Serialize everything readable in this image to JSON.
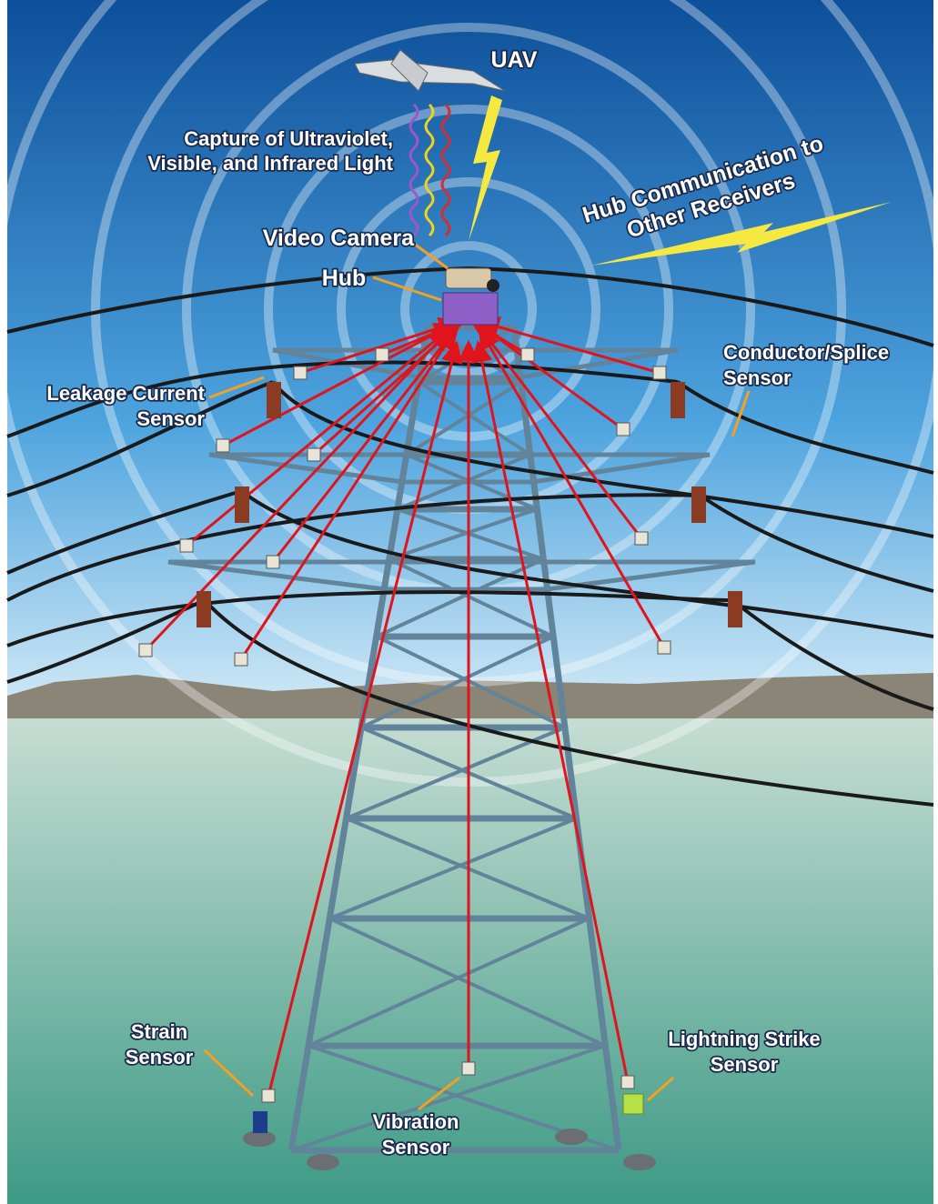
{
  "nodes": [
    {
      "lines": [
        "UAV"
      ]
    },
    {
      "lines": [
        "Capture of Ultraviolet,",
        "Visible, and Infrared Light"
      ]
    },
    {
      "lines": [
        "Hub Communication to",
        "Other Receivers"
      ]
    },
    {
      "lines": [
        "Video Camera"
      ]
    },
    {
      "lines": [
        "Hub"
      ]
    },
    {
      "lines": [
        "Leakage Current",
        "Sensor"
      ]
    },
    {
      "lines": [
        "Conductor/Splice",
        "Sensor"
      ]
    },
    {
      "lines": [
        "Strain",
        "Sensor"
      ]
    },
    {
      "lines": [
        "Vibration",
        "Sensor"
      ]
    },
    {
      "lines": [
        "Lightning Strike",
        "Sensor"
      ]
    }
  ]
}
